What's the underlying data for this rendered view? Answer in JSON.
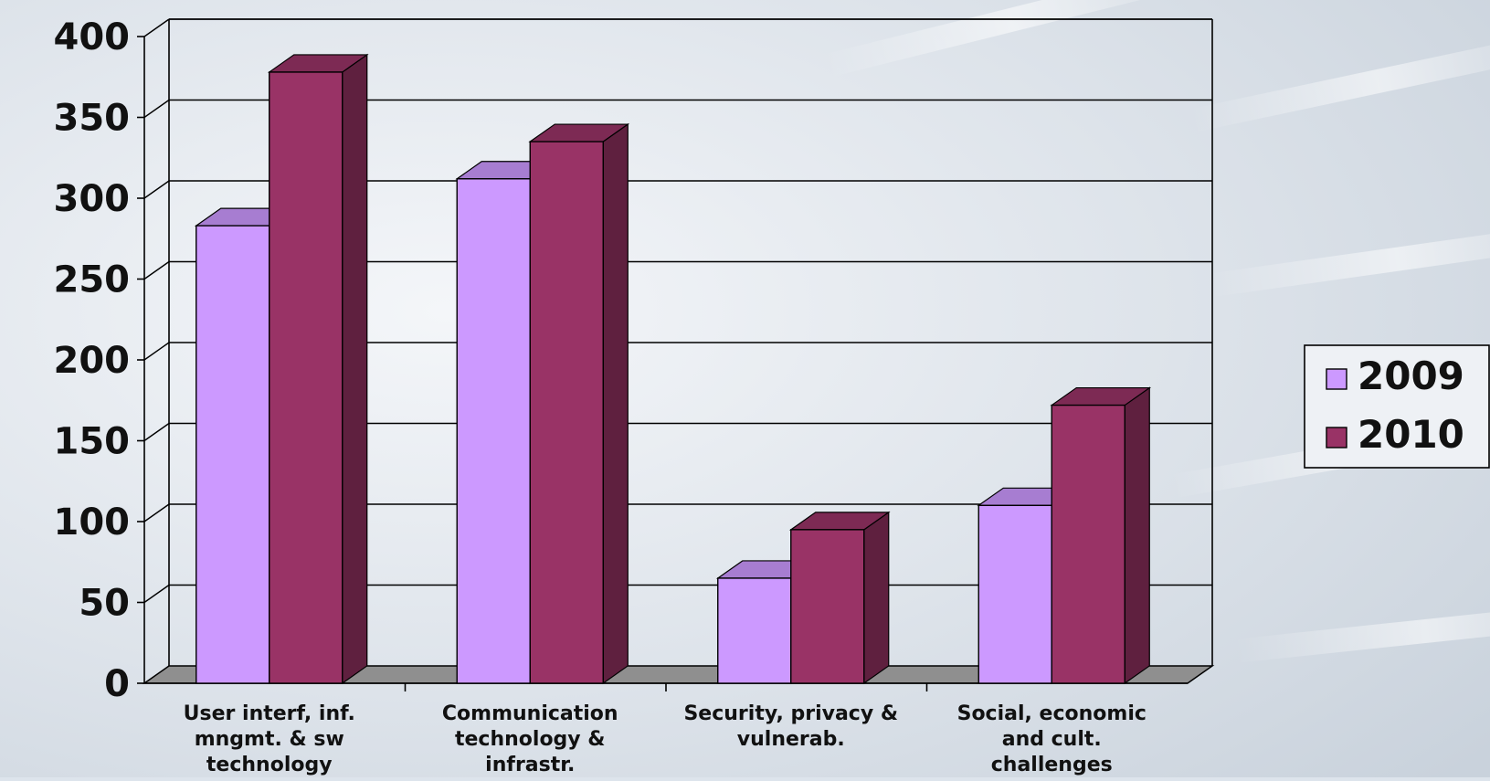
{
  "chart_data": {
    "type": "bar",
    "categories": [
      [
        "User interf, inf.",
        "mngmt. & sw",
        "technology"
      ],
      [
        "Communication",
        "technology &",
        "infrastr."
      ],
      [
        "Security, privacy &",
        "vulnerab."
      ],
      [
        "Social, economic",
        "and cult.",
        "challenges"
      ]
    ],
    "series": [
      {
        "name": "2009",
        "values": [
          283,
          312,
          65,
          110
        ],
        "color": "#cc99ff"
      },
      {
        "name": "2010",
        "values": [
          378,
          335,
          95,
          172
        ],
        "color": "#993366"
      }
    ],
    "ylim": [
      0,
      400
    ],
    "yticks": [
      "0",
      "50",
      "100",
      "150",
      "200",
      "250",
      "300",
      "350",
      "400"
    ],
    "grid": true,
    "legend_position": "right"
  }
}
